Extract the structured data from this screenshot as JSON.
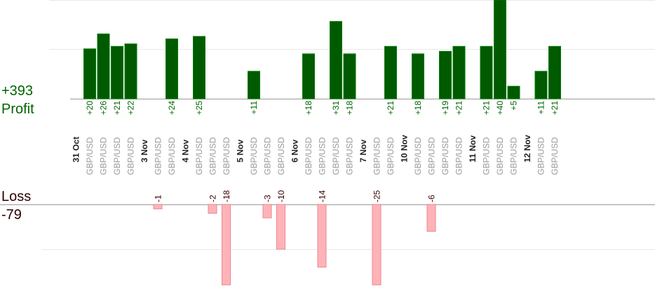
{
  "summary": {
    "profit_total": "+393",
    "profit_label": "Profit",
    "loss_label": "Loss",
    "loss_total": "-79"
  },
  "chart_data": {
    "type": "bar",
    "title": "",
    "grid": true,
    "profit_ylim": [
      0,
      25
    ],
    "loss_ylim": [
      -18,
      0
    ],
    "colors": {
      "profit_bar": "#005a00",
      "profit_bar_edge": "#007a00",
      "profit_text": "#006400",
      "loss_bar": "#ffb3b8",
      "loss_bar_edge": "#e8888f",
      "loss_text": "#3a0000",
      "date_text": "#222222",
      "pair_text": "#999999",
      "grid": "#e8e8e8",
      "axis": "#999999"
    },
    "days": [
      {
        "label": "31 Oct",
        "trades": [
          {
            "pair": "GBP/USD",
            "value": 20
          },
          {
            "pair": "GBP/USD",
            "value": 26
          },
          {
            "pair": "GBP/USD",
            "value": 21
          },
          {
            "pair": "GBP/USD",
            "value": 22
          }
        ]
      },
      {
        "label": "3 Nov",
        "trades": [
          {
            "pair": "GBP/USD",
            "value": -1
          },
          {
            "pair": "GBP/USD",
            "value": 24
          }
        ]
      },
      {
        "label": "4 Nov",
        "trades": [
          {
            "pair": "GBP/USD",
            "value": 25
          },
          {
            "pair": "GBP/USD",
            "value": -2
          },
          {
            "pair": "GBP/USD",
            "value": -18
          }
        ]
      },
      {
        "label": "5 Nov",
        "trades": [
          {
            "pair": "GBP/USD",
            "value": 11
          },
          {
            "pair": "GBP/USD",
            "value": -3
          },
          {
            "pair": "GBP/USD",
            "value": -10
          }
        ]
      },
      {
        "label": "6 Nov",
        "trades": [
          {
            "pair": "GBP/USD",
            "value": 18
          },
          {
            "pair": "GBP/USD",
            "value": -14
          },
          {
            "pair": "GBP/USD",
            "value": 31
          },
          {
            "pair": "GBP/USD",
            "value": 18
          }
        ]
      },
      {
        "label": "7 Nov",
        "trades": [
          {
            "pair": "GBP/USD",
            "value": -25
          },
          {
            "pair": "GBP/USD",
            "value": 21
          }
        ]
      },
      {
        "label": "10 Nov",
        "trades": [
          {
            "pair": "GBP/USD",
            "value": 18
          },
          {
            "pair": "GBP/USD",
            "value": -6
          },
          {
            "pair": "GBP/USD",
            "value": 19
          },
          {
            "pair": "GBP/USD",
            "value": 21
          }
        ]
      },
      {
        "label": "11 Nov",
        "trades": [
          {
            "pair": "GBP/USD",
            "value": 21
          },
          {
            "pair": "GBP/USD",
            "value": 40
          },
          {
            "pair": "GBP/USD",
            "value": 5
          }
        ]
      },
      {
        "label": "12 Nov",
        "trades": [
          {
            "pair": "GBP/USD",
            "value": 11
          },
          {
            "pair": "GBP/USD",
            "value": 21
          }
        ]
      }
    ]
  }
}
